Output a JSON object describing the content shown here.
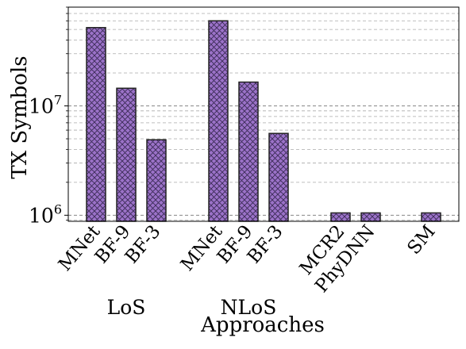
{
  "chart_data": {
    "type": "bar",
    "title": "",
    "xlabel": "Approaches",
    "ylabel": "TX Symbols",
    "yscale": "log",
    "ylim": [
      880000,
      80000000
    ],
    "grid": "y (major and minor, dashed)",
    "legend": "none",
    "categories": [
      "MNet",
      "BF-9",
      "BF-3",
      "MNet",
      "BF-9",
      "BF-3",
      "MCR2",
      "PhyDNN",
      "SM"
    ],
    "groups": [
      {
        "label": "LoS",
        "members": [
          0,
          1,
          2
        ]
      },
      {
        "label": "NLoS",
        "members": [
          3,
          4,
          5
        ]
      },
      {
        "label": "",
        "members": [
          6,
          7,
          8
        ]
      }
    ],
    "values": [
      52000000,
      14500000,
      4900000,
      60000000,
      16500000,
      5600000,
      1050000,
      1050000,
      1050000
    ],
    "yticks": [
      {
        "value": 1000000,
        "base": "10",
        "exp": "6"
      },
      {
        "value": 10000000,
        "base": "10",
        "exp": "7"
      }
    ],
    "bar_color": "#9b72c8",
    "bar_edge_color": "#222222",
    "hatch": "cross-hatch"
  }
}
